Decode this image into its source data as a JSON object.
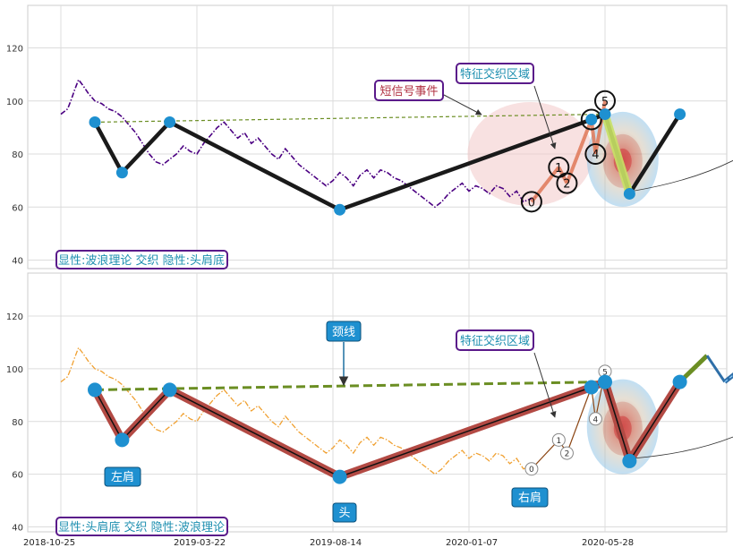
{
  "chart_data": [
    {
      "type": "line",
      "panel": "top",
      "ylim": [
        38,
        136
      ],
      "y_ticks": [
        40,
        60,
        80,
        100,
        120
      ],
      "grid": true,
      "x_dates": [
        "2018-10-25",
        "2019-03-22",
        "2019-08-14",
        "2020-01-07",
        "2020-05-28"
      ],
      "price_series": {
        "color": "#4b0082",
        "style": "dash-dot",
        "points": [
          [
            0,
            95
          ],
          [
            0.05,
            97
          ],
          [
            0.08,
            101
          ],
          [
            0.1,
            104
          ],
          [
            0.13,
            108
          ],
          [
            0.16,
            106
          ],
          [
            0.2,
            103
          ],
          [
            0.25,
            100
          ],
          [
            0.3,
            99
          ],
          [
            0.35,
            97
          ],
          [
            0.4,
            96
          ],
          [
            0.45,
            94
          ],
          [
            0.5,
            91
          ],
          [
            0.55,
            88
          ],
          [
            0.6,
            84
          ],
          [
            0.65,
            80
          ],
          [
            0.7,
            77
          ],
          [
            0.75,
            76
          ],
          [
            0.8,
            78
          ],
          [
            0.85,
            80
          ],
          [
            0.9,
            83
          ],
          [
            0.95,
            81
          ],
          [
            1.0,
            80
          ],
          [
            1.05,
            84
          ],
          [
            1.1,
            87
          ],
          [
            1.15,
            90
          ],
          [
            1.2,
            92
          ],
          [
            1.25,
            89
          ],
          [
            1.3,
            86
          ],
          [
            1.35,
            88
          ],
          [
            1.4,
            84
          ],
          [
            1.45,
            86
          ],
          [
            1.5,
            83
          ],
          [
            1.55,
            80
          ],
          [
            1.6,
            78
          ],
          [
            1.65,
            82
          ],
          [
            1.7,
            79
          ],
          [
            1.75,
            76
          ],
          [
            1.8,
            74
          ],
          [
            1.85,
            72
          ],
          [
            1.9,
            70
          ],
          [
            1.95,
            68
          ],
          [
            2.0,
            70
          ],
          [
            2.05,
            73
          ],
          [
            2.1,
            71
          ],
          [
            2.15,
            68
          ],
          [
            2.2,
            72
          ],
          [
            2.25,
            74
          ],
          [
            2.3,
            71
          ],
          [
            2.35,
            74
          ],
          [
            2.4,
            73
          ],
          [
            2.45,
            71
          ],
          [
            2.5,
            70
          ],
          [
            2.55,
            68
          ],
          [
            2.6,
            66
          ],
          [
            2.65,
            64
          ],
          [
            2.7,
            62
          ],
          [
            2.75,
            60
          ],
          [
            2.8,
            62
          ],
          [
            2.85,
            65
          ],
          [
            2.9,
            67
          ],
          [
            2.95,
            69
          ],
          [
            3.0,
            66
          ],
          [
            3.05,
            68
          ],
          [
            3.1,
            67
          ],
          [
            3.15,
            65
          ],
          [
            3.2,
            68
          ],
          [
            3.25,
            67
          ],
          [
            3.3,
            64
          ],
          [
            3.35,
            66
          ],
          [
            3.4,
            62
          ],
          [
            3.5,
            64
          ]
        ]
      },
      "wave_points": {
        "labels": [
          "0",
          "1",
          "2",
          "3",
          "4",
          "5"
        ],
        "values": [
          [
            3.46,
            62
          ],
          [
            3.66,
            75
          ],
          [
            3.72,
            69
          ],
          [
            3.9,
            93
          ],
          [
            3.93,
            80
          ],
          [
            4.0,
            100
          ]
        ]
      },
      "neckline": {
        "from": [
          0.25,
          92
        ],
        "to": [
          4.0,
          95
        ],
        "color": "#6b8e23"
      },
      "pattern_path": {
        "values": [
          [
            0.25,
            92
          ],
          [
            0.45,
            73
          ],
          [
            0.8,
            92
          ],
          [
            2.05,
            59
          ],
          [
            3.9,
            93
          ],
          [
            4.0,
            95
          ],
          [
            4.18,
            65
          ],
          [
            4.55,
            95
          ]
        ]
      },
      "annotations": [
        "短信号事件",
        "特征交织区域"
      ],
      "legend_box": "显性:波浪理论 交织 隐性:头肩底"
    },
    {
      "type": "line",
      "panel": "bottom",
      "ylim": [
        38,
        136
      ],
      "y_ticks": [
        40,
        60,
        80,
        100,
        120
      ],
      "grid": true,
      "x_dates": [
        "2018-10-25",
        "2019-03-22",
        "2019-08-14",
        "2020-01-07",
        "2020-05-28"
      ],
      "price_series": {
        "color": "#f0a030",
        "style": "dash-dot",
        "points": [
          [
            0,
            95
          ],
          [
            0.05,
            97
          ],
          [
            0.08,
            101
          ],
          [
            0.1,
            104
          ],
          [
            0.13,
            108
          ],
          [
            0.16,
            106
          ],
          [
            0.2,
            103
          ],
          [
            0.25,
            100
          ],
          [
            0.3,
            99
          ],
          [
            0.35,
            97
          ],
          [
            0.4,
            96
          ],
          [
            0.45,
            94
          ],
          [
            0.5,
            91
          ],
          [
            0.55,
            88
          ],
          [
            0.6,
            84
          ],
          [
            0.65,
            80
          ],
          [
            0.7,
            77
          ],
          [
            0.75,
            76
          ],
          [
            0.8,
            78
          ],
          [
            0.85,
            80
          ],
          [
            0.9,
            83
          ],
          [
            0.95,
            81
          ],
          [
            1.0,
            80
          ],
          [
            1.05,
            84
          ],
          [
            1.1,
            87
          ],
          [
            1.15,
            90
          ],
          [
            1.2,
            92
          ],
          [
            1.25,
            89
          ],
          [
            1.3,
            86
          ],
          [
            1.35,
            88
          ],
          [
            1.4,
            84
          ],
          [
            1.45,
            86
          ],
          [
            1.5,
            83
          ],
          [
            1.55,
            80
          ],
          [
            1.6,
            78
          ],
          [
            1.65,
            82
          ],
          [
            1.7,
            79
          ],
          [
            1.75,
            76
          ],
          [
            1.8,
            74
          ],
          [
            1.85,
            72
          ],
          [
            1.9,
            70
          ],
          [
            1.95,
            68
          ],
          [
            2.0,
            70
          ],
          [
            2.05,
            73
          ],
          [
            2.1,
            71
          ],
          [
            2.15,
            68
          ],
          [
            2.2,
            72
          ],
          [
            2.25,
            74
          ],
          [
            2.3,
            71
          ],
          [
            2.35,
            74
          ],
          [
            2.4,
            73
          ],
          [
            2.45,
            71
          ],
          [
            2.5,
            70
          ],
          [
            2.55,
            68
          ],
          [
            2.6,
            66
          ],
          [
            2.65,
            64
          ],
          [
            2.7,
            62
          ],
          [
            2.75,
            60
          ],
          [
            2.8,
            62
          ],
          [
            2.85,
            65
          ],
          [
            2.9,
            67
          ],
          [
            2.95,
            69
          ],
          [
            3.0,
            66
          ],
          [
            3.05,
            68
          ],
          [
            3.1,
            67
          ],
          [
            3.15,
            65
          ],
          [
            3.2,
            68
          ],
          [
            3.25,
            67
          ],
          [
            3.3,
            64
          ],
          [
            3.35,
            66
          ],
          [
            3.4,
            62
          ],
          [
            3.5,
            64
          ]
        ]
      },
      "wave_points": {
        "labels": [
          "0",
          "1",
          "2",
          "3",
          "4",
          "5"
        ],
        "values": [
          [
            3.46,
            62
          ],
          [
            3.66,
            73
          ],
          [
            3.72,
            68
          ],
          [
            3.9,
            93
          ],
          [
            3.93,
            81
          ],
          [
            4.0,
            99
          ]
        ]
      },
      "neckline": {
        "from": [
          0.25,
          92
        ],
        "to": [
          4.0,
          95
        ],
        "color": "#6b8e23"
      },
      "pattern_path": {
        "values": [
          [
            0.25,
            92
          ],
          [
            0.45,
            73
          ],
          [
            0.8,
            92
          ],
          [
            2.05,
            59
          ],
          [
            3.9,
            93
          ],
          [
            4.0,
            95
          ],
          [
            4.18,
            65
          ],
          [
            4.55,
            95
          ]
        ]
      },
      "projection": {
        "values": [
          [
            4.55,
            95
          ],
          [
            4.75,
            105
          ],
          [
            4.88,
            95
          ],
          [
            5.7,
            129
          ]
        ]
      },
      "labels": {
        "left_shoulder": "左肩",
        "head": "头",
        "right_shoulder": "右肩",
        "neckline": "颈线",
        "feature_zone": "特征交织区域"
      },
      "legend_box": "显性:头肩底 交织 隐性:波浪理论"
    }
  ],
  "colors": {
    "accent_blue": "#1e90d0",
    "neck_green": "#6b8e23",
    "purple_border": "#5a1a8a",
    "red_border": "#b03040",
    "pattern_red": "#b34a44"
  }
}
